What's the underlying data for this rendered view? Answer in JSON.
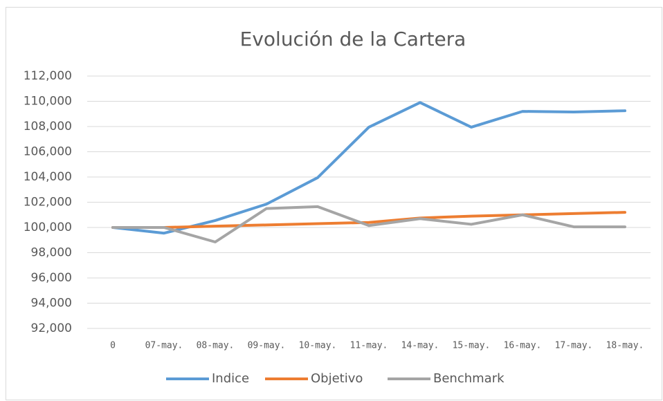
{
  "chart_data": {
    "type": "line",
    "title": "Evolución de la Cartera",
    "categories": [
      "0",
      "07-may.",
      "08-may.",
      "09-may.",
      "10-may.",
      "11-may.",
      "14-may.",
      "15-may.",
      "16-may.",
      "17-may.",
      "18-may."
    ],
    "series": [
      {
        "name": "Indice",
        "color": "#5b9bd5",
        "values": [
          100,
          99.55,
          100.55,
          101.85,
          103.95,
          107.95,
          109.9,
          107.95,
          109.2,
          109.15,
          109.25
        ]
      },
      {
        "name": "Objetivo",
        "color": "#ed7d31",
        "values": [
          100,
          100,
          100.1,
          100.2,
          100.3,
          100.4,
          100.75,
          100.9,
          101.0,
          101.1,
          101.2
        ]
      },
      {
        "name": "Benchmark",
        "color": "#a5a5a5",
        "values": [
          100,
          100,
          98.85,
          101.5,
          101.65,
          100.15,
          100.7,
          100.25,
          101.0,
          100.05,
          100.05
        ]
      }
    ],
    "ylim": [
      92,
      112
    ],
    "yticks": [
      {
        "value": 92,
        "label": "92,000"
      },
      {
        "value": 94,
        "label": "94,000"
      },
      {
        "value": 96,
        "label": "96,000"
      },
      {
        "value": 98,
        "label": "98,000"
      },
      {
        "value": 100,
        "label": "100,000"
      },
      {
        "value": 102,
        "label": "102,000"
      },
      {
        "value": 104,
        "label": "104,000"
      },
      {
        "value": 106,
        "label": "106,000"
      },
      {
        "value": 108,
        "label": "108,000"
      },
      {
        "value": 110,
        "label": "110,000"
      },
      {
        "value": 112,
        "label": "112,000"
      }
    ],
    "grid": true,
    "legend": "bottom"
  }
}
